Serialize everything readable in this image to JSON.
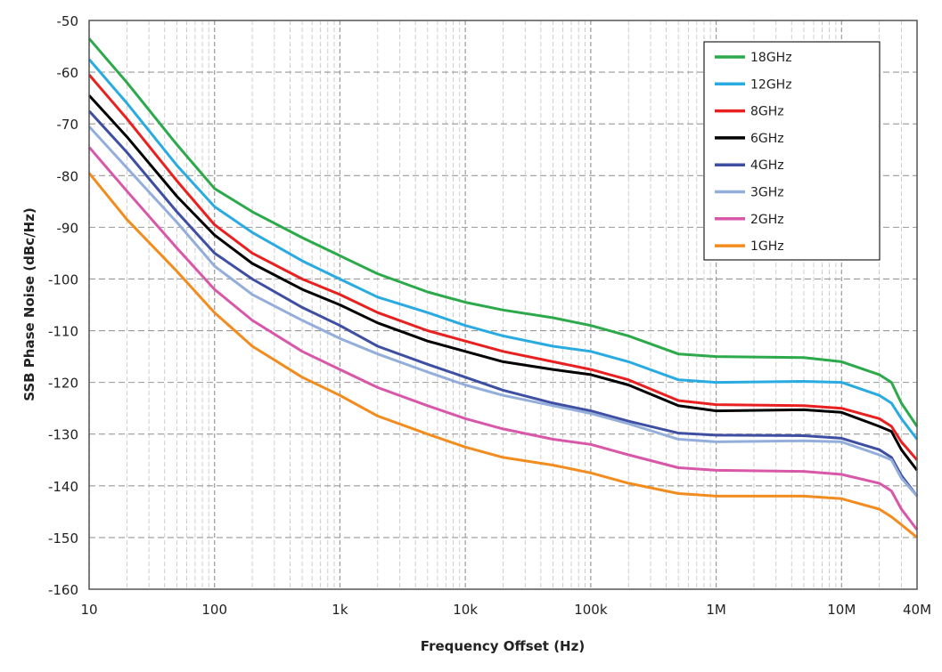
{
  "chart_data": {
    "type": "line",
    "title": "",
    "xlabel": "Frequency Offset (Hz)",
    "ylabel": "SSB Phase Noise (dBc/Hz)",
    "xscale": "log",
    "xlim": [
      10,
      40000000
    ],
    "ylim": [
      -160,
      -50
    ],
    "grid": true,
    "legend_position": "top-right",
    "x_ticks": [
      {
        "value": 10,
        "label": "10"
      },
      {
        "value": 100,
        "label": "100"
      },
      {
        "value": 1000,
        "label": "1k"
      },
      {
        "value": 10000,
        "label": "10k"
      },
      {
        "value": 100000,
        "label": "100k"
      },
      {
        "value": 1000000,
        "label": "1M"
      },
      {
        "value": 10000000,
        "label": "10M"
      },
      {
        "value": 40000000,
        "label": "40M"
      }
    ],
    "y_ticks": [
      -50,
      -60,
      -70,
      -80,
      -90,
      -100,
      -110,
      -120,
      -130,
      -140,
      -150,
      -160
    ],
    "x": [
      10,
      20,
      50,
      100,
      200,
      500,
      1000,
      2000,
      5000,
      10000,
      20000,
      50000,
      100000,
      200000,
      500000,
      1000000,
      5000000,
      10000000,
      20000000,
      25000000,
      30000000,
      40000000
    ],
    "series": [
      {
        "name": "18GHz",
        "color": "#2ca94a",
        "values": [
          -53.5,
          -62,
          -74,
          -82.5,
          -87,
          -92,
          -95.5,
          -99,
          -102.5,
          -104.5,
          -106,
          -107.5,
          -109,
          -111,
          -114.5,
          -115,
          -115.2,
          -116,
          -118.5,
          -120,
          -124,
          -128.5
        ]
      },
      {
        "name": "12GHz",
        "color": "#29abe2",
        "values": [
          -57.5,
          -66,
          -78,
          -86,
          -91,
          -96.5,
          -100,
          -103.5,
          -106.5,
          -109,
          -111,
          -113,
          -114,
          -116,
          -119.5,
          -120,
          -119.8,
          -120,
          -122.5,
          -124,
          -127,
          -131
        ]
      },
      {
        "name": "8GHz",
        "color": "#e8201f",
        "values": [
          -60.5,
          -69,
          -81,
          -89.5,
          -95,
          -100,
          -103,
          -106.5,
          -110,
          -112,
          -114,
          -116,
          -117.5,
          -119.5,
          -123.5,
          -124.3,
          -124.5,
          -125,
          -127,
          -128.5,
          -131.5,
          -135
        ]
      },
      {
        "name": "6GHz",
        "color": "#000000",
        "values": [
          -64.5,
          -72.5,
          -84,
          -91.5,
          -97,
          -102,
          -105,
          -108.5,
          -112,
          -114,
          -116,
          -117.5,
          -118.5,
          -120.5,
          -124.5,
          -125.5,
          -125.3,
          -125.8,
          -128.5,
          -129.5,
          -133,
          -137
        ]
      },
      {
        "name": "4GHz",
        "color": "#3e4fa3",
        "values": [
          -67.5,
          -75.5,
          -87,
          -95,
          -100,
          -105.5,
          -109,
          -113,
          -116.5,
          -119,
          -121.5,
          -124,
          -125.5,
          -127.5,
          -129.8,
          -130.2,
          -130.3,
          -130.8,
          -133,
          -134.5,
          -138,
          -142
        ]
      },
      {
        "name": "3GHz",
        "color": "#93aedb",
        "values": [
          -70.5,
          -78.5,
          -89,
          -97.5,
          -103,
          -108,
          -111.5,
          -114.5,
          -118,
          -120.5,
          -122.5,
          -124.5,
          -126,
          -128,
          -131,
          -131.5,
          -131.3,
          -131.5,
          -134,
          -135,
          -138.5,
          -142
        ]
      },
      {
        "name": "2GHz",
        "color": "#d957a8",
        "values": [
          -74.5,
          -83,
          -94,
          -102,
          -108,
          -114,
          -117.5,
          -121,
          -124.5,
          -127,
          -129,
          -131,
          -132,
          -134,
          -136.5,
          -137,
          -137.2,
          -137.8,
          -139.5,
          -141,
          -144.5,
          -148.5
        ]
      },
      {
        "name": "1GHz",
        "color": "#f28c1e",
        "values": [
          -79.5,
          -88.5,
          -98.5,
          -106.5,
          -113,
          -119,
          -122.5,
          -126.5,
          -130,
          -132.5,
          -134.5,
          -136,
          -137.5,
          -139.5,
          -141.5,
          -142,
          -142,
          -142.5,
          -144.5,
          -146,
          -147.5,
          -150
        ]
      }
    ]
  }
}
